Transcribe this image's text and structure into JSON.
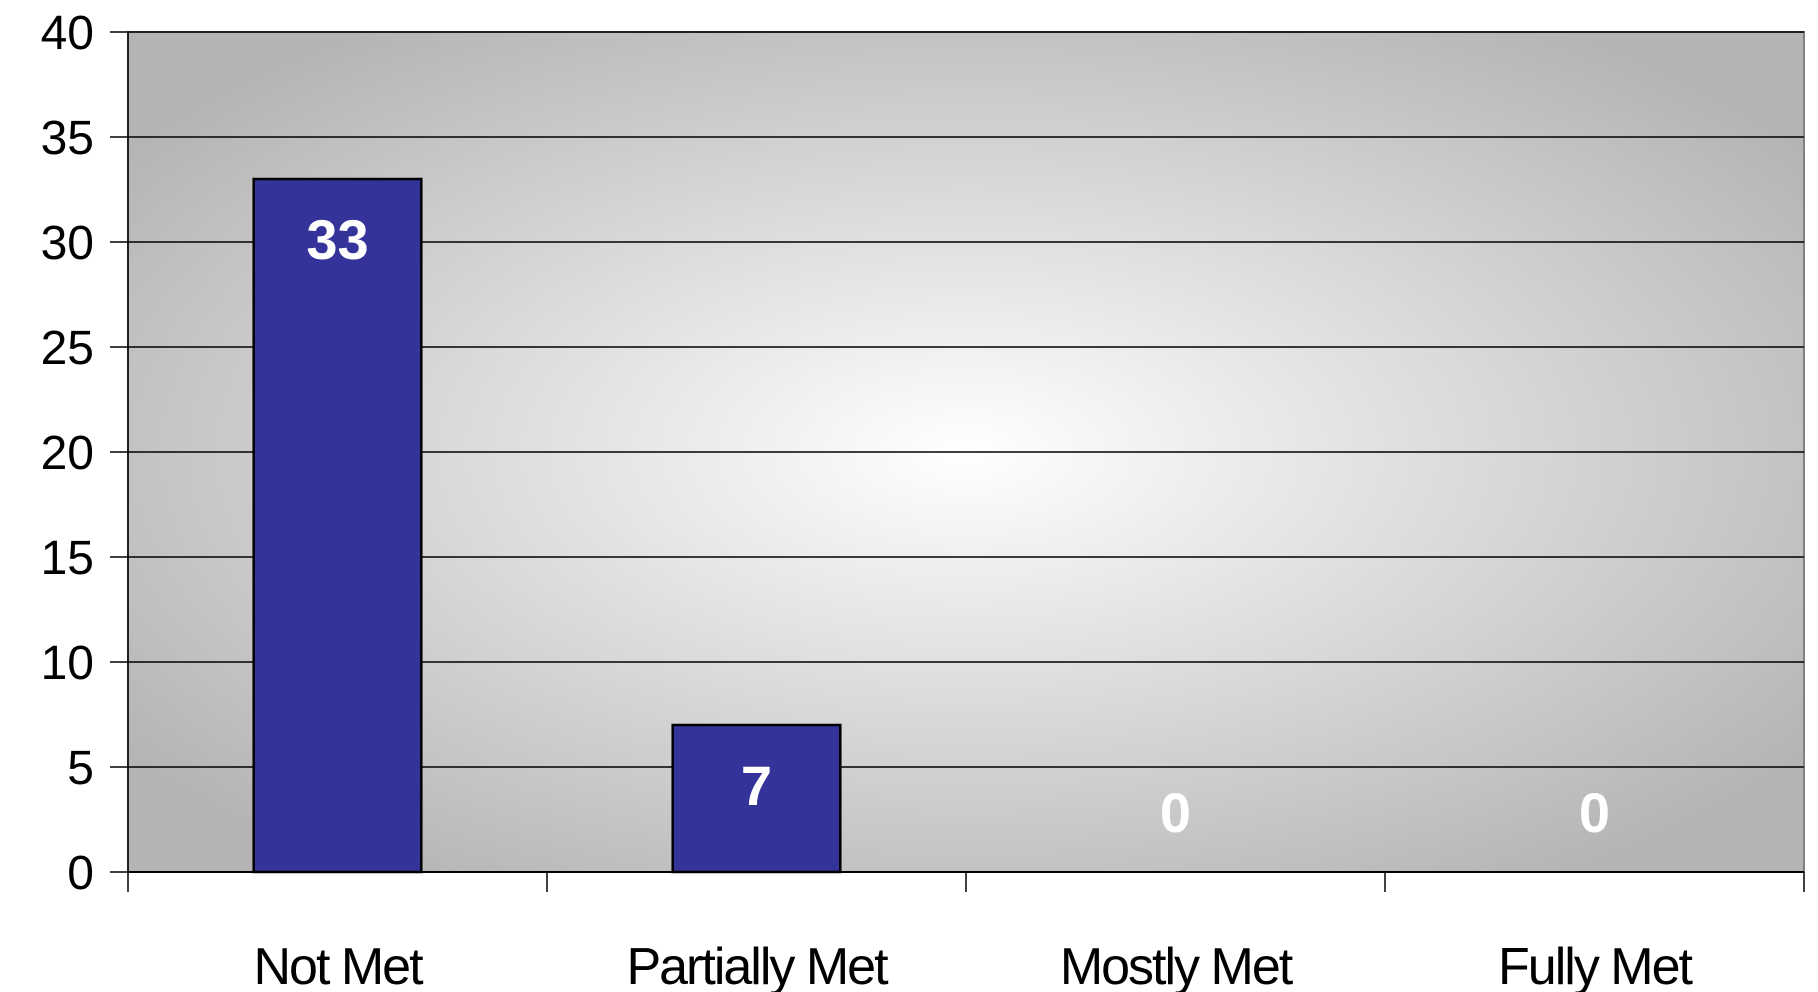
{
  "chart_data": {
    "type": "bar",
    "categories": [
      "Not Met",
      "Partially Met",
      "Mostly Met",
      "Fully Met"
    ],
    "values": [
      33,
      7,
      0,
      0
    ],
    "data_labels": [
      "33",
      "7",
      "0",
      "0"
    ],
    "title": "",
    "xlabel": "",
    "ylabel": "",
    "ylim": [
      0,
      40
    ],
    "yticks": [
      0,
      5,
      10,
      15,
      20,
      25,
      30,
      35,
      40
    ],
    "grid": true,
    "legend": "none",
    "colors": {
      "bar": "#333399",
      "plot_center": "#ffffff",
      "plot_edge": "#b4b4b4",
      "gridline": "#000000"
    }
  }
}
